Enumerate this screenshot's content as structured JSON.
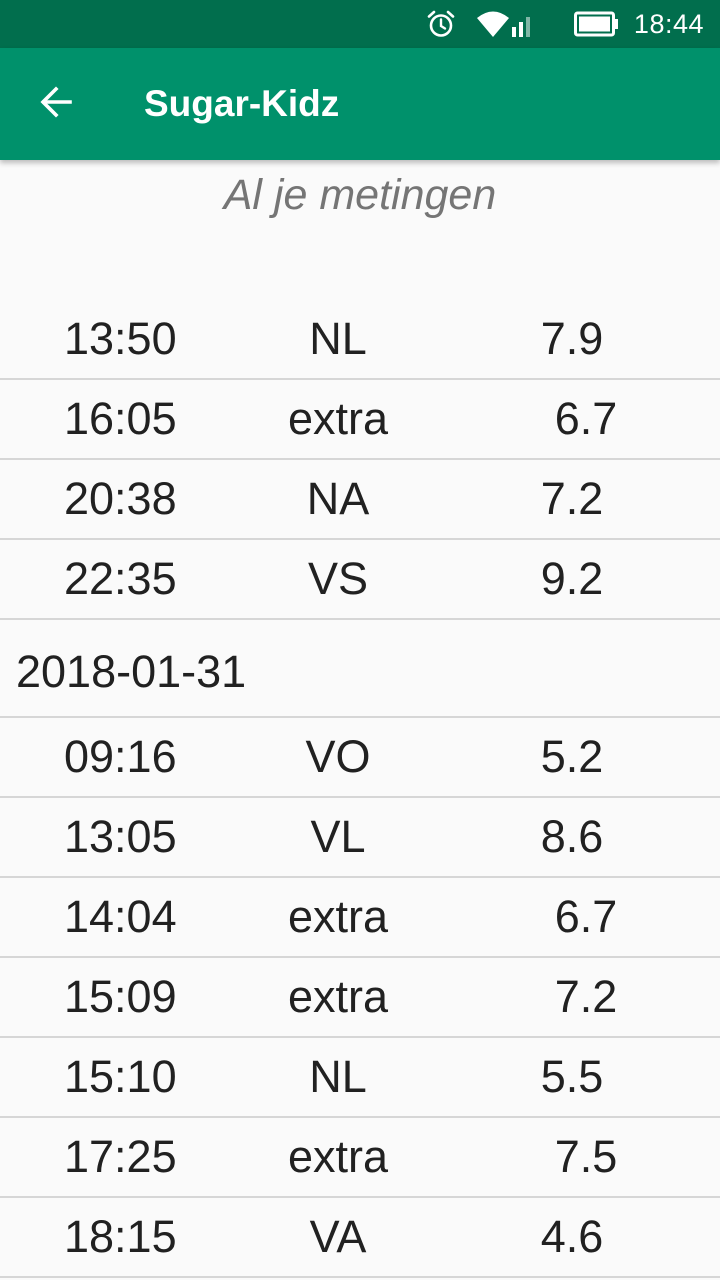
{
  "status_bar": {
    "time": "18:44",
    "icons": [
      "alarm-icon",
      "wifi-icon",
      "signal-icon",
      "battery-icon"
    ]
  },
  "app_bar": {
    "title": "Sugar-Kidz",
    "back_icon": "arrow-back-icon",
    "color": "#00916b"
  },
  "subtitle": "Al je metingen",
  "rows_top": [
    {
      "time": "13:50",
      "type": "NL",
      "value": "7.9"
    },
    {
      "time": "16:05",
      "type": "extra",
      "value": "6.7"
    },
    {
      "time": "20:38",
      "type": "NA",
      "value": "7.2"
    },
    {
      "time": "22:35",
      "type": "VS",
      "value": "9.2"
    }
  ],
  "date_header": "2018-01-31",
  "rows_bottom": [
    {
      "time": "09:16",
      "type": "VO",
      "value": "5.2"
    },
    {
      "time": "13:05",
      "type": "VL",
      "value": "8.6"
    },
    {
      "time": "14:04",
      "type": "extra",
      "value": "6.7"
    },
    {
      "time": "15:09",
      "type": "extra",
      "value": "7.2"
    },
    {
      "time": "15:10",
      "type": "NL",
      "value": "5.5"
    },
    {
      "time": "17:25",
      "type": "extra",
      "value": "7.5"
    },
    {
      "time": "18:15",
      "type": "VA",
      "value": "4.6"
    }
  ]
}
